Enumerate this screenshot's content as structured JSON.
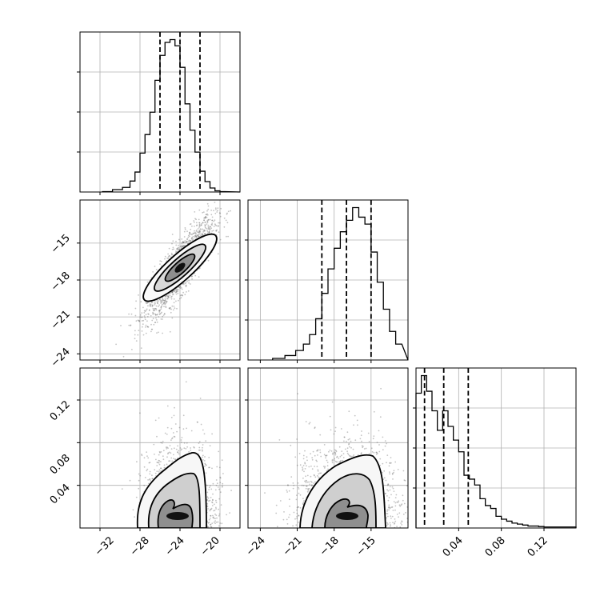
{
  "chart_data": [
    {
      "type": "histogram",
      "panel": "p1",
      "xlim": [
        -34,
        -18
      ],
      "xticks": [
        -32,
        -28,
        -24,
        -20
      ],
      "bins_x": [
        -31.25,
        -30.25,
        -29.25,
        -28.75,
        -28.25,
        -27.75,
        -27.25,
        -26.75,
        -26.25,
        -25.75,
        -25.25,
        -24.75,
        -24.25,
        -23.75,
        -23.25,
        -22.75,
        -22.25,
        -21.75,
        -21.25,
        -20.75,
        -20.25,
        -19.75
      ],
      "counts": [
        0.2,
        1.2,
        2.3,
        5.5,
        10,
        19.5,
        28.8,
        40,
        56,
        68.5,
        75,
        76.4,
        73.3,
        62.5,
        44.2,
        31,
        20,
        10.4,
        5.2,
        2,
        0.6,
        0.2
      ],
      "quantile_lines": [
        -26.0,
        -24.0,
        -22.0
      ]
    },
    {
      "type": "scatter+contour",
      "panel": "p12",
      "xlim": [
        -34,
        -18
      ],
      "ylim": [
        -24.5,
        -11.5
      ],
      "xticks": [
        -32,
        -28,
        -24,
        -20
      ],
      "yticks": [
        -15,
        -18,
        -21,
        -24
      ],
      "x_tick_labels": [
        "−32",
        "−28",
        "−24",
        "−20"
      ],
      "y_tick_labels": [
        "−15",
        "−18",
        "−21",
        "−24"
      ],
      "mean": [
        -24.0,
        -17.0
      ],
      "sd": [
        1.7,
        2.0
      ],
      "correlation": 0.85
    },
    {
      "type": "histogram",
      "panel": "p2",
      "xlim": [
        -25,
        -12
      ],
      "xticks": [
        -24,
        -21,
        -18,
        -15
      ],
      "bins_x": [
        -22.5,
        -21.5,
        -20.75,
        -20.25,
        -19.75,
        -19.25,
        -18.75,
        -18.25,
        -17.75,
        -17.25,
        -16.75,
        -16.25,
        -15.75,
        -15.25,
        -14.75,
        -14.25,
        -13.75,
        -13.25,
        -12.75
      ],
      "counts": [
        0.5,
        1.4,
        3,
        5,
        8,
        13,
        21,
        28.7,
        35.2,
        40.4,
        44,
        48,
        45,
        42.8,
        34,
        24.5,
        16,
        9,
        5
      ],
      "quantile_lines": [
        -19.0,
        -17.0,
        -15.0
      ]
    },
    {
      "type": "scatter+contour",
      "panel": "p13",
      "xlim": [
        -34,
        -18
      ],
      "ylim": [
        0,
        0.15
      ],
      "xticks": [
        -32,
        -28,
        -24,
        -20
      ],
      "yticks": [
        0.04,
        0.08,
        0.12
      ]
    },
    {
      "type": "scatter+contour",
      "panel": "p23",
      "xlim": [
        -25,
        -12
      ],
      "ylim": [
        0,
        0.15
      ],
      "xticks": [
        -24,
        -21,
        -18,
        -15
      ],
      "yticks": [
        0.04,
        0.08,
        0.12
      ]
    },
    {
      "type": "histogram",
      "panel": "p3",
      "xlim": [
        0,
        0.15
      ],
      "xticks": [
        0.04,
        0.08,
        0.12
      ],
      "bins_x": [
        0.0025,
        0.0075,
        0.0125,
        0.0175,
        0.0225,
        0.0275,
        0.0325,
        0.0375,
        0.0425,
        0.0475,
        0.0525,
        0.0575,
        0.0625,
        0.0675,
        0.0725,
        0.0775,
        0.0825,
        0.0875,
        0.0925,
        0.0975,
        0.1025,
        0.1075,
        0.1125,
        0.1175,
        0.1225,
        0.1275,
        0.1325,
        0.1375,
        0.1425,
        0.1475
      ],
      "counts": [
        138,
        156,
        140,
        120,
        100,
        120,
        104,
        90,
        78,
        54,
        50,
        44,
        30,
        23,
        20,
        12,
        9,
        7,
        5,
        4,
        3,
        2,
        2,
        1.5,
        1,
        1,
        1,
        1,
        1,
        1
      ],
      "quantile_lines": [
        0.008,
        0.026,
        0.049
      ]
    }
  ],
  "tick_labels": {
    "x1": [
      "−32",
      "−28",
      "−24",
      "−20"
    ],
    "x2": [
      "−24",
      "−21",
      "−18",
      "−15"
    ],
    "x3": [
      "0.04",
      "0.08",
      "0.12"
    ],
    "y2": [
      "−15",
      "−18",
      "−21",
      "−24"
    ],
    "y3": [
      "0.12",
      "0.08",
      "0.04"
    ]
  }
}
